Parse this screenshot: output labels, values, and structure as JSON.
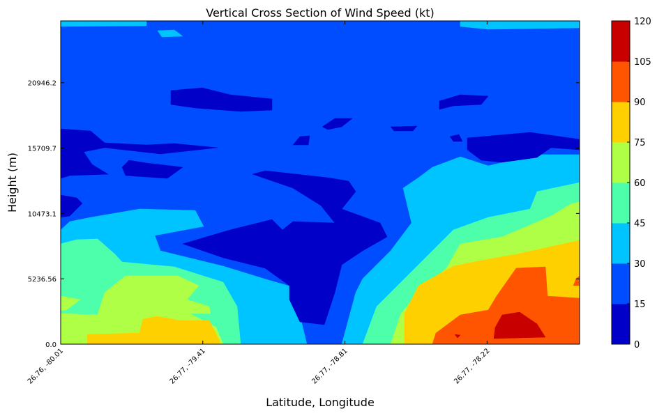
{
  "chart_data": {
    "type": "contour",
    "title": "Vertical Cross Section of Wind Speed (kt)",
    "xlabel": "Latitude, Longitude",
    "ylabel": "Height (m)",
    "xtick_labels": [
      "26.76, -80.01",
      "26.77, -79.41",
      "26.77, -78.81",
      "26.77, -78.22"
    ],
    "yticks": [
      0.0,
      5236.56,
      10473.1,
      15709.7,
      20946.2
    ],
    "ytick_labels": [
      "0.0",
      "5236.56",
      "10473.1",
      "15709.7",
      "20946.2"
    ],
    "ylim": [
      0,
      25900
    ],
    "levels": [
      0,
      15,
      30,
      45,
      60,
      75,
      90,
      105,
      120
    ],
    "level_colors": [
      "#0000c8",
      "#004cff",
      "#00c4ff",
      "#4dffaa",
      "#b0ff47",
      "#ffd000",
      "#ff5500",
      "#c80000"
    ],
    "colorbar": {
      "tick_labels": [
        "0",
        "15",
        "30",
        "45",
        "60",
        "75",
        "90",
        "105",
        "120"
      ],
      "position": "right"
    },
    "grid": false
  }
}
